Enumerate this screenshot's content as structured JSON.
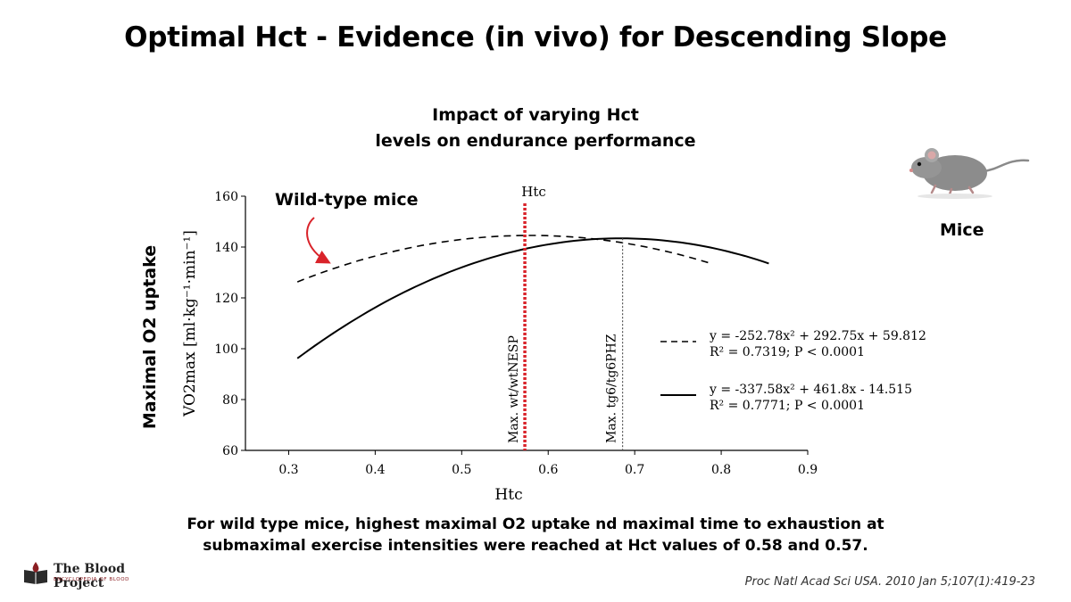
{
  "slide": {
    "title": "Optimal Hct - Evidence (in vivo) for Descending Slope",
    "subtitle_line1": "Impact of varying Hct",
    "subtitle_line2": "levels on endurance performance",
    "side_label": "Maximal O2 uptake",
    "mice_label": "Mice",
    "caption_line1": "For wild type mice, highest maximal O2 uptake nd maximal time to exhaustion at",
    "caption_line2": "submaximal exercise intensities were reached at Hct values of 0.58 and 0.57.",
    "citation": "Proc Natl Acad Sci USA. 2010 Jan 5;107(1):419-23",
    "logo_name": "The Blood Project",
    "logo_sub": "ENCYCLOPEDIA OF BLOOD",
    "annotation": "Wild-type mice"
  },
  "colors": {
    "red_marker": "#d9232a",
    "curve": "#000000",
    "logo_red": "#8b1e22"
  },
  "chart_data": {
    "type": "line",
    "xlabel": "Htc",
    "xlim": [
      0.25,
      0.9
    ],
    "ylim": [
      60,
      160
    ],
    "x_ticks": [
      "0.3",
      "0.4",
      "0.5",
      "0.6",
      "0.7",
      "0.8",
      "0.9"
    ],
    "y_ticks": [
      "60",
      "80",
      "100",
      "120",
      "140",
      "160"
    ],
    "ylabel": "VO2max [ml·kg⁻¹·min⁻¹]",
    "series": [
      {
        "equation": "y = -252.78x² + 292.75x + 59.812",
        "stats": "R² = 0.7319; P < 0.0001",
        "style": "dashed",
        "coefficients": [
          -252.78,
          292.75,
          59.812
        ],
        "x_range": [
          0.31,
          0.79
        ]
      },
      {
        "equation": "y = -337.58x² + 461.8x - 14.515",
        "stats": "R² = 0.7771; P < 0.0001",
        "style": "solid",
        "coefficients": [
          -337.58,
          461.8,
          -14.515
        ],
        "x_range": [
          0.31,
          0.855
        ]
      }
    ],
    "markers": [
      {
        "x": 0.573,
        "label": "Max. wt/wtNESP",
        "top_label": "Htc",
        "style": "red-dotted"
      },
      {
        "x": 0.686,
        "label": "Max. tg6/tg6PHZ",
        "style": "gray-dotted"
      }
    ]
  }
}
